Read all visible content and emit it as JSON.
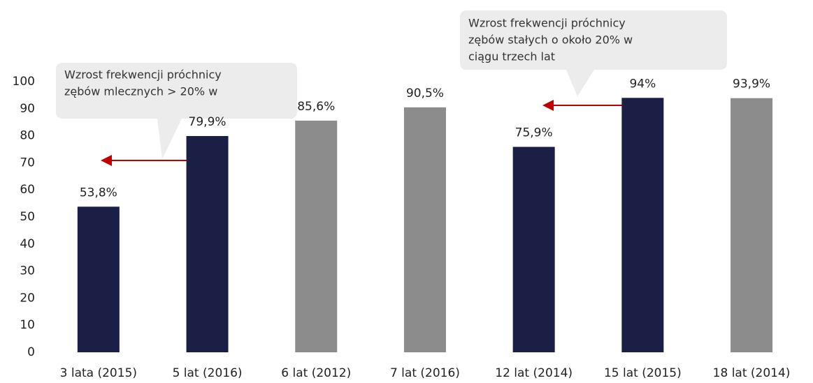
{
  "chart_data": {
    "type": "bar",
    "categories": [
      "3 lata (2015)",
      "5 lat (2016)",
      "6 lat (2012)",
      "7 lat (2016)",
      "12 lat (2014)",
      "15 lat (2015)",
      "18 lat (2014)"
    ],
    "values": [
      53.8,
      79.9,
      85.6,
      90.5,
      75.9,
      94,
      93.9
    ],
    "value_labels": [
      "53,8%",
      "79,9%",
      "85,6%",
      "90,5%",
      "75,9%",
      "94%",
      "93,9%"
    ],
    "colors": [
      "#1c1f45",
      "#1c1f45",
      "#8c8c8c",
      "#8c8c8c",
      "#1c1f45",
      "#1c1f45",
      "#8c8c8c"
    ],
    "ylim": [
      0,
      100
    ],
    "yticks": [
      0,
      10,
      20,
      30,
      40,
      50,
      60,
      70,
      80,
      90,
      100
    ],
    "grid": false,
    "annotations": [
      {
        "lines": [
          "Wzrost frekwencji próchnicy",
          "zębów mlecznych  > 20% w"
        ]
      },
      {
        "lines": [
          "Wzrost frekwencji próchnicy",
          "zębów stałych o  około 20% w",
          "ciągu trzech lat"
        ]
      }
    ]
  }
}
